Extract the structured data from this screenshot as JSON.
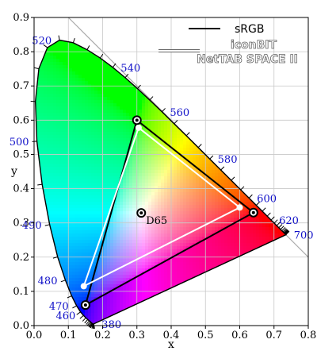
{
  "chart_data": {
    "type": "scatter",
    "xlabel": "x",
    "ylabel": "y",
    "xlim": [
      0.0,
      0.8
    ],
    "ylim": [
      0.0,
      0.9
    ],
    "x_ticks": [
      "0.0",
      "0.1",
      "0.2",
      "0.3",
      "0.4",
      "0.5",
      "0.6",
      "0.7",
      "0.8"
    ],
    "y_ticks": [
      "0.0",
      "0.1",
      "0.2",
      "0.3",
      "0.4",
      "0.5",
      "0.6",
      "0.7",
      "0.8",
      "0.9"
    ],
    "grid": true,
    "legend_position": "top-right",
    "spectral_locus": [
      [
        0.1741,
        0.005
      ],
      [
        0.1738,
        0.0049
      ],
      [
        0.1736,
        0.0049
      ],
      [
        0.1733,
        0.0048
      ],
      [
        0.173,
        0.0048
      ],
      [
        0.1726,
        0.0048
      ],
      [
        0.1721,
        0.0048
      ],
      [
        0.1714,
        0.0051
      ],
      [
        0.1703,
        0.0058
      ],
      [
        0.1689,
        0.0069
      ],
      [
        0.1669,
        0.0086
      ],
      [
        0.1644,
        0.0109
      ],
      [
        0.1611,
        0.0138
      ],
      [
        0.1566,
        0.0177
      ],
      [
        0.151,
        0.0227
      ],
      [
        0.144,
        0.0297
      ],
      [
        0.1355,
        0.0399
      ],
      [
        0.1241,
        0.0578
      ],
      [
        0.1096,
        0.0868
      ],
      [
        0.0913,
        0.1327
      ],
      [
        0.0687,
        0.2007
      ],
      [
        0.0454,
        0.295
      ],
      [
        0.0235,
        0.4127
      ],
      [
        0.0082,
        0.5384
      ],
      [
        0.0039,
        0.6548
      ],
      [
        0.0139,
        0.7502
      ],
      [
        0.0389,
        0.812
      ],
      [
        0.0743,
        0.8338
      ],
      [
        0.1142,
        0.8262
      ],
      [
        0.1547,
        0.8059
      ],
      [
        0.1929,
        0.7816
      ],
      [
        0.2296,
        0.7543
      ],
      [
        0.2658,
        0.7243
      ],
      [
        0.3016,
        0.6923
      ],
      [
        0.3373,
        0.6589
      ],
      [
        0.3731,
        0.6245
      ],
      [
        0.4087,
        0.5896
      ],
      [
        0.4441,
        0.5547
      ],
      [
        0.4788,
        0.5202
      ],
      [
        0.5125,
        0.4866
      ],
      [
        0.5448,
        0.4544
      ],
      [
        0.5752,
        0.4242
      ],
      [
        0.6029,
        0.3965
      ],
      [
        0.627,
        0.3725
      ],
      [
        0.6482,
        0.3514
      ],
      [
        0.6658,
        0.334
      ],
      [
        0.6801,
        0.3197
      ],
      [
        0.6915,
        0.3083
      ],
      [
        0.7006,
        0.2993
      ],
      [
        0.7079,
        0.292
      ],
      [
        0.714,
        0.2859
      ],
      [
        0.719,
        0.2809
      ],
      [
        0.723,
        0.277
      ],
      [
        0.726,
        0.274
      ],
      [
        0.7283,
        0.2717
      ],
      [
        0.73,
        0.27
      ],
      [
        0.7311,
        0.2689
      ],
      [
        0.732,
        0.268
      ],
      [
        0.7327,
        0.2673
      ],
      [
        0.7334,
        0.2666
      ],
      [
        0.734,
        0.266
      ],
      [
        0.7344,
        0.2656
      ],
      [
        0.7346,
        0.2654
      ],
      [
        0.7347,
        0.2653
      ]
    ],
    "wavelength_labels": [
      {
        "text": "380",
        "x": 0.1741,
        "y": 0.005,
        "dir": "right"
      },
      {
        "text": "460",
        "x": 0.144,
        "y": 0.0297,
        "dir": "left"
      },
      {
        "text": "470",
        "x": 0.1241,
        "y": 0.0578,
        "dir": "left"
      },
      {
        "text": "480",
        "x": 0.0913,
        "y": 0.1327,
        "dir": "left"
      },
      {
        "text": "490",
        "x": 0.0454,
        "y": 0.295,
        "dir": "left"
      },
      {
        "text": "500",
        "x": 0.0082,
        "y": 0.5384,
        "dir": "left"
      },
      {
        "text": "520",
        "x": 0.0743,
        "y": 0.8338,
        "dir": "left"
      },
      {
        "text": "540",
        "x": 0.2296,
        "y": 0.7543,
        "dir": "right"
      },
      {
        "text": "560",
        "x": 0.3731,
        "y": 0.6245,
        "dir": "right"
      },
      {
        "text": "580",
        "x": 0.5125,
        "y": 0.4866,
        "dir": "right"
      },
      {
        "text": "600",
        "x": 0.627,
        "y": 0.3725,
        "dir": "right"
      },
      {
        "text": "620",
        "x": 0.6915,
        "y": 0.3083,
        "dir": "right"
      },
      {
        "text": "700",
        "x": 0.7347,
        "y": 0.2653,
        "dir": "right"
      }
    ],
    "series": [
      {
        "name": "sRGB",
        "color": "#000000",
        "points": [
          [
            0.64,
            0.33
          ],
          [
            0.3,
            0.6
          ],
          [
            0.15,
            0.06
          ]
        ]
      },
      {
        "name": "iconBIT NetTAB SPACE II",
        "color": "#ffffff",
        "points": [
          [
            0.6,
            0.345
          ],
          [
            0.305,
            0.578
          ],
          [
            0.145,
            0.115
          ]
        ]
      }
    ],
    "white_point": {
      "label": "D65",
      "x": 0.3127,
      "y": 0.329
    }
  }
}
